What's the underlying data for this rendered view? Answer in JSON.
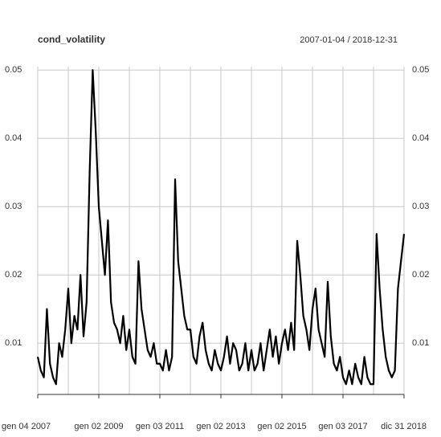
{
  "chart_data": {
    "type": "line",
    "title": "cond_volatility",
    "subtitle": "2007-01-04 / 2018-12-31",
    "x": [
      2007.0,
      2007.1,
      2007.2,
      2007.3,
      2007.4,
      2007.5,
      2007.6,
      2007.7,
      2007.8,
      2007.9,
      2008.0,
      2008.1,
      2008.2,
      2008.3,
      2008.4,
      2008.5,
      2008.6,
      2008.7,
      2008.8,
      2008.9,
      2009.0,
      2009.1,
      2009.2,
      2009.3,
      2009.4,
      2009.5,
      2009.6,
      2009.7,
      2009.8,
      2009.9,
      2010.0,
      2010.1,
      2010.2,
      2010.3,
      2010.4,
      2010.5,
      2010.6,
      2010.7,
      2010.8,
      2010.9,
      2011.0,
      2011.1,
      2011.2,
      2011.3,
      2011.4,
      2011.5,
      2011.6,
      2011.7,
      2011.8,
      2011.9,
      2012.0,
      2012.1,
      2012.2,
      2012.3,
      2012.4,
      2012.5,
      2012.6,
      2012.7,
      2012.8,
      2012.9,
      2013.0,
      2013.1,
      2013.2,
      2013.3,
      2013.4,
      2013.5,
      2013.6,
      2013.7,
      2013.8,
      2013.9,
      2014.0,
      2014.1,
      2014.2,
      2014.3,
      2014.4,
      2014.5,
      2014.6,
      2014.7,
      2014.8,
      2014.9,
      2015.0,
      2015.1,
      2015.2,
      2015.3,
      2015.4,
      2015.5,
      2015.6,
      2015.7,
      2015.8,
      2015.9,
      2016.0,
      2016.1,
      2016.2,
      2016.3,
      2016.4,
      2016.5,
      2016.6,
      2016.7,
      2016.8,
      2016.9,
      2017.0,
      2017.1,
      2017.2,
      2017.3,
      2017.4,
      2017.5,
      2017.6,
      2017.7,
      2017.8,
      2017.9,
      2018.0,
      2018.1,
      2018.2,
      2018.3,
      2018.4,
      2018.5,
      2018.6,
      2018.7,
      2018.8,
      2018.9,
      2019.0
    ],
    "series": [
      {
        "name": "cond_volatility",
        "color": "#000000",
        "values": [
          0.008,
          0.006,
          0.005,
          0.015,
          0.007,
          0.005,
          0.004,
          0.01,
          0.008,
          0.012,
          0.018,
          0.01,
          0.014,
          0.012,
          0.02,
          0.011,
          0.016,
          0.035,
          0.05,
          0.041,
          0.03,
          0.025,
          0.02,
          0.028,
          0.016,
          0.013,
          0.012,
          0.01,
          0.014,
          0.009,
          0.012,
          0.008,
          0.007,
          0.022,
          0.015,
          0.012,
          0.009,
          0.008,
          0.01,
          0.007,
          0.007,
          0.006,
          0.009,
          0.006,
          0.008,
          0.034,
          0.022,
          0.018,
          0.014,
          0.012,
          0.012,
          0.008,
          0.007,
          0.011,
          0.013,
          0.009,
          0.007,
          0.006,
          0.009,
          0.007,
          0.006,
          0.008,
          0.011,
          0.007,
          0.01,
          0.009,
          0.006,
          0.007,
          0.01,
          0.006,
          0.009,
          0.006,
          0.007,
          0.01,
          0.006,
          0.009,
          0.012,
          0.008,
          0.011,
          0.007,
          0.01,
          0.012,
          0.009,
          0.013,
          0.009,
          0.025,
          0.02,
          0.014,
          0.012,
          0.009,
          0.015,
          0.018,
          0.012,
          0.01,
          0.008,
          0.019,
          0.011,
          0.007,
          0.006,
          0.008,
          0.005,
          0.004,
          0.006,
          0.004,
          0.007,
          0.005,
          0.004,
          0.008,
          0.005,
          0.004,
          0.004,
          0.026,
          0.018,
          0.012,
          0.008,
          0.006,
          0.005,
          0.006,
          0.018,
          0.022,
          0.026
        ]
      }
    ],
    "xlim": [
      2007.0,
      2019.0
    ],
    "xticks": [
      {
        "value": 2007.0,
        "label": "gen 04 2007"
      },
      {
        "value": 2009.0,
        "label": "gen 02 2009"
      },
      {
        "value": 2011.0,
        "label": "gen 03 2011"
      },
      {
        "value": 2013.0,
        "label": "gen 02 2013"
      },
      {
        "value": 2015.0,
        "label": "gen 02 2015"
      },
      {
        "value": 2017.0,
        "label": "gen 03 2017"
      },
      {
        "value": 2019.0,
        "label": "dic 31 2018"
      }
    ],
    "xgrid": [
      2008,
      2010,
      2012,
      2014,
      2016,
      2018
    ],
    "ylim": [
      0.0025,
      0.0505
    ],
    "yticks": [
      0.01,
      0.02,
      0.03,
      0.04,
      0.05
    ],
    "grid": true
  }
}
